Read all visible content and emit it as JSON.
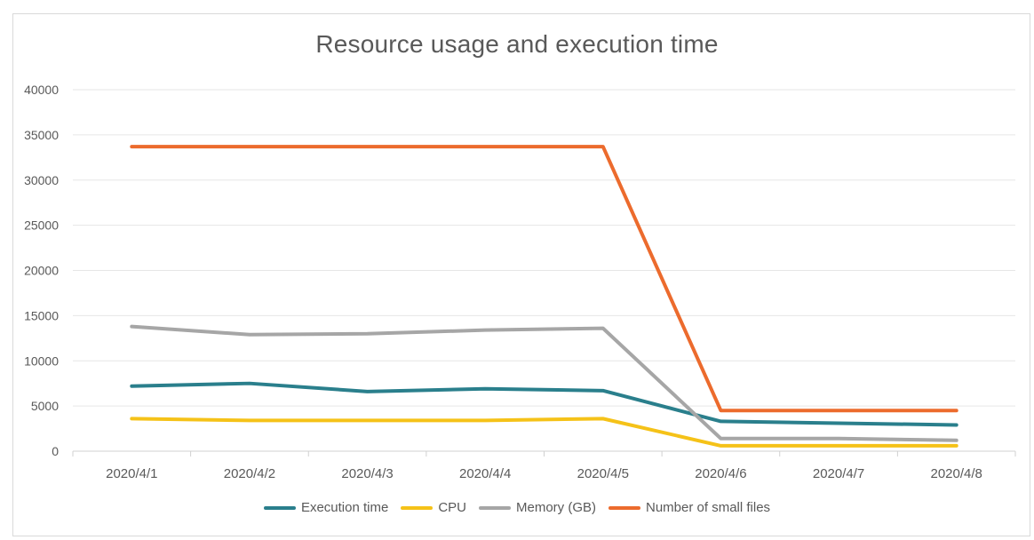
{
  "chart_data": {
    "type": "line",
    "title": "Resource usage and execution time",
    "xlabel": "",
    "ylabel": "",
    "ylim": [
      0,
      40000
    ],
    "yticks": [
      0,
      5000,
      10000,
      15000,
      20000,
      25000,
      30000,
      35000,
      40000
    ],
    "categories": [
      "2020/4/1",
      "2020/4/2",
      "2020/4/3",
      "2020/4/4",
      "2020/4/5",
      "2020/4/6",
      "2020/4/7",
      "2020/4/8"
    ],
    "grid": "horizontal",
    "legend_position": "bottom",
    "series": [
      {
        "name": "Execution time",
        "color": "#2a7f8c",
        "values": [
          7200,
          7500,
          6600,
          6900,
          6700,
          3300,
          3100,
          2900
        ]
      },
      {
        "name": "CPU",
        "color": "#f5c218",
        "values": [
          3600,
          3400,
          3400,
          3400,
          3600,
          600,
          600,
          600
        ]
      },
      {
        "name": "Memory (GB)",
        "color": "#a6a6a6",
        "values": [
          13800,
          12900,
          13000,
          13400,
          13600,
          1400,
          1400,
          1200
        ]
      },
      {
        "name": "Number of small files",
        "color": "#ec6b2d",
        "values": [
          33700,
          33700,
          33700,
          33700,
          33700,
          4500,
          4500,
          4500
        ]
      }
    ]
  }
}
